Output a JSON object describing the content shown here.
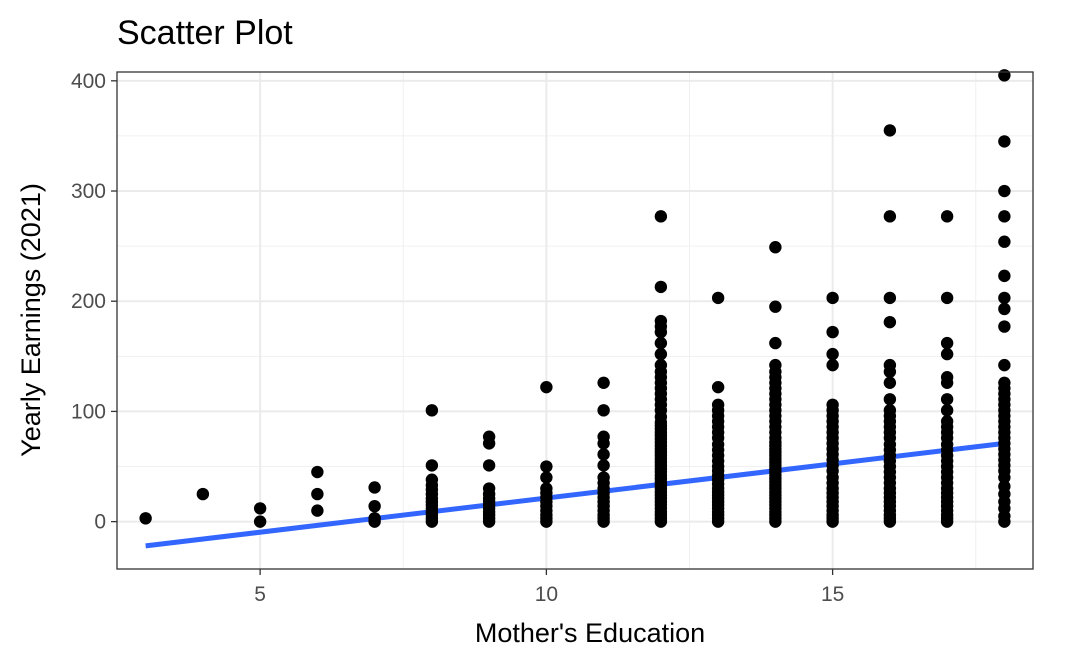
{
  "chart_data": {
    "type": "scatter",
    "title": "Scatter Plot",
    "xlabel": "Mother's Education",
    "ylabel": "Yearly Earnings (2021)",
    "xlim": [
      2.5,
      18.5
    ],
    "ylim": [
      -43,
      408
    ],
    "x_ticks": [
      5,
      10,
      15
    ],
    "y_ticks": [
      0,
      100,
      200,
      300,
      400
    ],
    "x_tick_labels": [
      "5",
      "10",
      "15"
    ],
    "y_tick_labels": [
      "0",
      "100",
      "200",
      "300",
      "400"
    ],
    "x_minor_ticks": [
      7.5,
      12.5,
      17.5
    ],
    "y_minor_ticks": [
      50,
      150,
      250,
      350
    ],
    "grid": true,
    "point_color": "#000000",
    "line_color": "#3366ff",
    "points": [
      [
        3,
        3
      ],
      [
        4,
        25
      ],
      [
        5,
        0
      ],
      [
        5,
        12
      ],
      [
        6,
        10
      ],
      [
        6,
        25
      ],
      [
        6,
        45
      ],
      [
        7,
        0
      ],
      [
        7,
        3
      ],
      [
        7,
        14
      ],
      [
        7,
        31
      ],
      [
        8,
        0
      ],
      [
        8,
        3
      ],
      [
        8,
        6
      ],
      [
        8,
        9
      ],
      [
        8,
        12
      ],
      [
        8,
        15
      ],
      [
        8,
        18
      ],
      [
        8,
        21
      ],
      [
        8,
        25
      ],
      [
        8,
        29
      ],
      [
        8,
        33
      ],
      [
        8,
        38
      ],
      [
        8,
        51
      ],
      [
        8,
        101
      ],
      [
        9,
        0
      ],
      [
        9,
        3
      ],
      [
        9,
        6
      ],
      [
        9,
        9
      ],
      [
        9,
        12
      ],
      [
        9,
        15
      ],
      [
        9,
        18
      ],
      [
        9,
        21
      ],
      [
        9,
        25
      ],
      [
        9,
        30
      ],
      [
        9,
        51
      ],
      [
        9,
        71
      ],
      [
        9,
        77
      ],
      [
        10,
        0
      ],
      [
        10,
        3
      ],
      [
        10,
        6
      ],
      [
        10,
        10
      ],
      [
        10,
        14
      ],
      [
        10,
        18
      ],
      [
        10,
        22
      ],
      [
        10,
        26
      ],
      [
        10,
        30
      ],
      [
        10,
        40
      ],
      [
        10,
        50
      ],
      [
        10,
        122
      ],
      [
        11,
        0
      ],
      [
        11,
        3
      ],
      [
        11,
        6
      ],
      [
        11,
        10
      ],
      [
        11,
        14
      ],
      [
        11,
        18
      ],
      [
        11,
        22
      ],
      [
        11,
        26
      ],
      [
        11,
        30
      ],
      [
        11,
        35
      ],
      [
        11,
        40
      ],
      [
        11,
        51
      ],
      [
        11,
        61
      ],
      [
        11,
        71
      ],
      [
        11,
        77
      ],
      [
        11,
        101
      ],
      [
        11,
        126
      ],
      [
        12,
        0
      ],
      [
        12,
        3
      ],
      [
        12,
        6
      ],
      [
        12,
        9
      ],
      [
        12,
        12
      ],
      [
        12,
        15
      ],
      [
        12,
        18
      ],
      [
        12,
        21
      ],
      [
        12,
        24
      ],
      [
        12,
        27
      ],
      [
        12,
        30
      ],
      [
        12,
        33
      ],
      [
        12,
        36
      ],
      [
        12,
        39
      ],
      [
        12,
        42
      ],
      [
        12,
        45
      ],
      [
        12,
        48
      ],
      [
        12,
        51
      ],
      [
        12,
        54
      ],
      [
        12,
        57
      ],
      [
        12,
        60
      ],
      [
        12,
        63
      ],
      [
        12,
        66
      ],
      [
        12,
        69
      ],
      [
        12,
        72
      ],
      [
        12,
        75
      ],
      [
        12,
        78
      ],
      [
        12,
        81
      ],
      [
        12,
        84
      ],
      [
        12,
        87
      ],
      [
        12,
        90
      ],
      [
        12,
        95
      ],
      [
        12,
        101
      ],
      [
        12,
        106
      ],
      [
        12,
        111
      ],
      [
        12,
        116
      ],
      [
        12,
        121
      ],
      [
        12,
        126
      ],
      [
        12,
        131
      ],
      [
        12,
        136
      ],
      [
        12,
        142
      ],
      [
        12,
        152
      ],
      [
        12,
        162
      ],
      [
        12,
        172
      ],
      [
        12,
        177
      ],
      [
        12,
        182
      ],
      [
        12,
        213
      ],
      [
        12,
        277
      ],
      [
        13,
        0
      ],
      [
        13,
        3
      ],
      [
        13,
        6
      ],
      [
        13,
        9
      ],
      [
        13,
        12
      ],
      [
        13,
        15
      ],
      [
        13,
        18
      ],
      [
        13,
        21
      ],
      [
        13,
        24
      ],
      [
        13,
        27
      ],
      [
        13,
        30
      ],
      [
        13,
        34
      ],
      [
        13,
        38
      ],
      [
        13,
        42
      ],
      [
        13,
        46
      ],
      [
        13,
        50
      ],
      [
        13,
        55
      ],
      [
        13,
        60
      ],
      [
        13,
        65
      ],
      [
        13,
        70
      ],
      [
        13,
        76
      ],
      [
        13,
        81
      ],
      [
        13,
        86
      ],
      [
        13,
        91
      ],
      [
        13,
        96
      ],
      [
        13,
        101
      ],
      [
        13,
        106
      ],
      [
        13,
        122
      ],
      [
        13,
        203
      ],
      [
        14,
        0
      ],
      [
        14,
        3
      ],
      [
        14,
        6
      ],
      [
        14,
        9
      ],
      [
        14,
        12
      ],
      [
        14,
        15
      ],
      [
        14,
        18
      ],
      [
        14,
        21
      ],
      [
        14,
        24
      ],
      [
        14,
        27
      ],
      [
        14,
        30
      ],
      [
        14,
        33
      ],
      [
        14,
        36
      ],
      [
        14,
        39
      ],
      [
        14,
        42
      ],
      [
        14,
        45
      ],
      [
        14,
        48
      ],
      [
        14,
        51
      ],
      [
        14,
        54
      ],
      [
        14,
        57
      ],
      [
        14,
        60
      ],
      [
        14,
        63
      ],
      [
        14,
        66
      ],
      [
        14,
        69
      ],
      [
        14,
        72
      ],
      [
        14,
        76
      ],
      [
        14,
        81
      ],
      [
        14,
        86
      ],
      [
        14,
        91
      ],
      [
        14,
        96
      ],
      [
        14,
        101
      ],
      [
        14,
        106
      ],
      [
        14,
        111
      ],
      [
        14,
        116
      ],
      [
        14,
        121
      ],
      [
        14,
        126
      ],
      [
        14,
        131
      ],
      [
        14,
        136
      ],
      [
        14,
        142
      ],
      [
        14,
        162
      ],
      [
        14,
        195
      ],
      [
        14,
        249
      ],
      [
        15,
        0
      ],
      [
        15,
        3
      ],
      [
        15,
        6
      ],
      [
        15,
        10
      ],
      [
        15,
        14
      ],
      [
        15,
        18
      ],
      [
        15,
        22
      ],
      [
        15,
        26
      ],
      [
        15,
        30
      ],
      [
        15,
        35
      ],
      [
        15,
        40
      ],
      [
        15,
        46
      ],
      [
        15,
        51
      ],
      [
        15,
        56
      ],
      [
        15,
        61
      ],
      [
        15,
        66
      ],
      [
        15,
        71
      ],
      [
        15,
        76
      ],
      [
        15,
        81
      ],
      [
        15,
        86
      ],
      [
        15,
        91
      ],
      [
        15,
        96
      ],
      [
        15,
        101
      ],
      [
        15,
        106
      ],
      [
        15,
        142
      ],
      [
        15,
        152
      ],
      [
        15,
        172
      ],
      [
        15,
        203
      ],
      [
        16,
        0
      ],
      [
        16,
        3
      ],
      [
        16,
        6
      ],
      [
        16,
        10
      ],
      [
        16,
        14
      ],
      [
        16,
        18
      ],
      [
        16,
        22
      ],
      [
        16,
        26
      ],
      [
        16,
        30
      ],
      [
        16,
        35
      ],
      [
        16,
        40
      ],
      [
        16,
        45
      ],
      [
        16,
        50
      ],
      [
        16,
        55
      ],
      [
        16,
        60
      ],
      [
        16,
        65
      ],
      [
        16,
        70
      ],
      [
        16,
        76
      ],
      [
        16,
        81
      ],
      [
        16,
        86
      ],
      [
        16,
        91
      ],
      [
        16,
        96
      ],
      [
        16,
        101
      ],
      [
        16,
        111
      ],
      [
        16,
        126
      ],
      [
        16,
        136
      ],
      [
        16,
        142
      ],
      [
        16,
        181
      ],
      [
        16,
        203
      ],
      [
        16,
        277
      ],
      [
        16,
        355
      ],
      [
        17,
        0
      ],
      [
        17,
        3
      ],
      [
        17,
        6
      ],
      [
        17,
        10
      ],
      [
        17,
        14
      ],
      [
        17,
        18
      ],
      [
        17,
        22
      ],
      [
        17,
        26
      ],
      [
        17,
        30
      ],
      [
        17,
        35
      ],
      [
        17,
        40
      ],
      [
        17,
        45
      ],
      [
        17,
        50
      ],
      [
        17,
        55
      ],
      [
        17,
        60
      ],
      [
        17,
        65
      ],
      [
        17,
        70
      ],
      [
        17,
        76
      ],
      [
        17,
        81
      ],
      [
        17,
        86
      ],
      [
        17,
        91
      ],
      [
        17,
        101
      ],
      [
        17,
        111
      ],
      [
        17,
        126
      ],
      [
        17,
        131
      ],
      [
        17,
        152
      ],
      [
        17,
        162
      ],
      [
        17,
        203
      ],
      [
        17,
        277
      ],
      [
        18,
        0
      ],
      [
        18,
        5
      ],
      [
        18,
        12
      ],
      [
        18,
        18
      ],
      [
        18,
        25
      ],
      [
        18,
        32
      ],
      [
        18,
        40
      ],
      [
        18,
        46
      ],
      [
        18,
        51
      ],
      [
        18,
        56
      ],
      [
        18,
        61
      ],
      [
        18,
        66
      ],
      [
        18,
        71
      ],
      [
        18,
        76
      ],
      [
        18,
        81
      ],
      [
        18,
        86
      ],
      [
        18,
        91
      ],
      [
        18,
        96
      ],
      [
        18,
        101
      ],
      [
        18,
        106
      ],
      [
        18,
        111
      ],
      [
        18,
        116
      ],
      [
        18,
        121
      ],
      [
        18,
        126
      ],
      [
        18,
        142
      ],
      [
        18,
        177
      ],
      [
        18,
        193
      ],
      [
        18,
        203
      ],
      [
        18,
        223
      ],
      [
        18,
        254
      ],
      [
        18,
        277
      ],
      [
        18,
        300
      ],
      [
        18,
        345
      ],
      [
        18,
        405
      ]
    ],
    "fit_line": {
      "x": [
        3,
        18
      ],
      "y": [
        -22,
        71
      ]
    }
  }
}
